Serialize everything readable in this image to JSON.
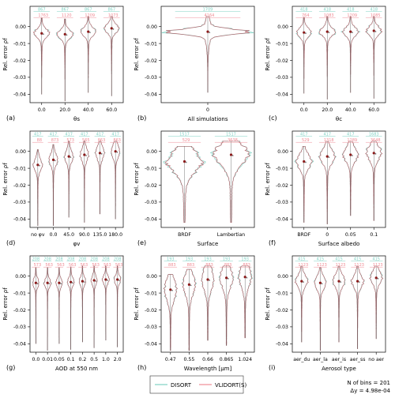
{
  "figure": {
    "legend": [
      {
        "label": "DISORT",
        "color": "#7fd1c3"
      },
      {
        "label": "VLIDORT(S)",
        "color": "#f08c95"
      }
    ],
    "footer_bins": "N of bins = 201",
    "footer_delta": "Δy = 4.98e-04"
  },
  "colors": {
    "disort": "#7fd1c3",
    "vlidort": "#f08c95",
    "median": "#8b1a1a",
    "outline": "#111111"
  },
  "chart_data": [
    {
      "type": "violin",
      "panel": "(a)",
      "xlabel": "θs",
      "ylabel": "Rel. error ρf",
      "ylim": [
        -0.045,
        0.012
      ],
      "yticks": [
        "0.00",
        "-0.01",
        "-0.02",
        "-0.03",
        "-0.04"
      ],
      "categories": [
        "0.0",
        "20.0",
        "40.0",
        "60.0"
      ],
      "counts_disort": [
        "867",
        "867",
        "867",
        "867"
      ],
      "counts_vlidort": [
        "1763",
        "1120",
        "1209",
        "1073"
      ],
      "medians": [
        -0.004,
        -0.0045,
        -0.003,
        -0.001
      ],
      "width": 0.65,
      "halfwidth": 0.0025
    },
    {
      "type": "violin",
      "panel": "(b)",
      "xlabel": "All simulations",
      "ylabel": "Rel. error ρf",
      "ylim": [
        -0.045,
        0.012
      ],
      "yticks": [
        "0.00",
        "-0.01",
        "-0.02",
        "-0.03",
        "-0.04"
      ],
      "categories": [
        "0"
      ],
      "counts_disort": [
        "1709"
      ],
      "counts_vlidort": [
        "4164"
      ],
      "medians": [
        -0.003
      ],
      "width": 0.9,
      "halfwidth": 0.0015
    },
    {
      "type": "violin",
      "panel": "(c)",
      "xlabel": "θc",
      "ylabel": "Rel. error ρf",
      "ylim": [
        -0.045,
        0.012
      ],
      "yticks": [
        "0.00",
        "-0.01",
        "-0.02",
        "-0.03",
        "-0.04"
      ],
      "categories": [
        "0.0",
        "20.0",
        "40.0",
        "60.0"
      ],
      "counts_disort": [
        "418",
        "418",
        "418",
        "418"
      ],
      "counts_vlidort": [
        "764",
        "1083",
        "1209",
        "1085"
      ],
      "medians": [
        -0.0035,
        -0.003,
        -0.003,
        -0.0025
      ],
      "width": 0.65,
      "halfwidth": 0.0025
    },
    {
      "type": "violin",
      "panel": "(d)",
      "xlabel": "φv",
      "ylabel": "Rel. error ρf",
      "ylim": [
        -0.045,
        0.012
      ],
      "yticks": [
        "0.00",
        "-0.01",
        "-0.02",
        "-0.03",
        "-0.04"
      ],
      "categories": [
        "no φv",
        "0.0",
        "45.0",
        "90.0",
        "135.0",
        "180.0"
      ],
      "counts_disort": [
        "417",
        "417",
        "417",
        "417",
        "417",
        "417"
      ],
      "counts_vlidort": [
        "88",
        "873",
        "573",
        "565",
        "863",
        "863"
      ],
      "medians": [
        -0.008,
        -0.005,
        -0.003,
        -0.002,
        -0.001,
        0.0
      ],
      "width": 0.55,
      "halfwidth": 0.0035
    },
    {
      "type": "violin",
      "panel": "(e)",
      "xlabel": "Surface",
      "ylabel": "Rel. error ρf",
      "ylim": [
        -0.045,
        0.012
      ],
      "yticks": [
        "0.00",
        "-0.01",
        "-0.02",
        "-0.03",
        "-0.04"
      ],
      "categories": [
        "BRDF",
        "Lambertian"
      ],
      "counts_disort": [
        "1517",
        "1517"
      ],
      "counts_vlidort": [
        "529",
        "3638"
      ],
      "medians": [
        -0.006,
        -0.002
      ],
      "width": 0.75,
      "halfwidth": 0.006
    },
    {
      "type": "violin",
      "panel": "(f)",
      "xlabel": "Surface albedo",
      "ylabel": "Rel. error ρf",
      "ylim": [
        -0.045,
        0.012
      ],
      "yticks": [
        "0.00",
        "-0.01",
        "-0.02",
        "-0.03",
        "-0.04"
      ],
      "categories": [
        "BRDF",
        "0",
        "0.05",
        "0.1"
      ],
      "counts_disort": [
        "417",
        "417",
        "417",
        "1683"
      ],
      "counts_vlidort": [
        "529",
        "1318",
        "1289",
        "3648"
      ],
      "medians": [
        -0.006,
        -0.003,
        -0.002,
        -0.001
      ],
      "width": 0.65,
      "halfwidth": 0.004
    },
    {
      "type": "violin",
      "panel": "(g)",
      "xlabel": "AOD at 550 nm",
      "ylabel": "Rel. error ρf",
      "ylim": [
        -0.045,
        0.012
      ],
      "yticks": [
        "0.00",
        "-0.01",
        "-0.02",
        "-0.03",
        "-0.04"
      ],
      "categories": [
        "0.0",
        "0.01",
        "0.05",
        "0.1",
        "0.2",
        "0.5",
        "1.0",
        "2.0"
      ],
      "counts_disort": [
        "208",
        "208",
        "208",
        "208",
        "208",
        "208",
        "208",
        "208"
      ],
      "counts_vlidort": [
        "573",
        "563",
        "563",
        "563",
        "563",
        "563",
        "563",
        "563"
      ],
      "medians": [
        -0.004,
        -0.004,
        -0.004,
        -0.0035,
        -0.003,
        -0.0025,
        -0.002,
        -0.002
      ],
      "width": 0.55,
      "halfwidth": 0.0025
    },
    {
      "type": "violin",
      "panel": "(h)",
      "xlabel": "Wavelength [μm]",
      "ylabel": "Rel. error ρf",
      "ylim": [
        -0.045,
        0.012
      ],
      "yticks": [
        "0.00",
        "-0.01",
        "-0.02",
        "-0.03",
        "-0.04"
      ],
      "categories": [
        "0.47",
        "0.55",
        "0.66",
        "0.865",
        "1.024"
      ],
      "counts_disort": [
        "193",
        "193",
        "193",
        "193",
        "193"
      ],
      "counts_vlidort": [
        "883",
        "883",
        "883",
        "883",
        "883"
      ],
      "medians": [
        -0.008,
        -0.005,
        -0.002,
        -0.001,
        -0.0005
      ],
      "width": 0.65,
      "halfwidth": 0.006
    },
    {
      "type": "violin",
      "panel": "(i)",
      "xlabel": "Aerosol type",
      "ylabel": "Rel. error ρf",
      "ylim": [
        -0.045,
        0.012
      ],
      "yticks": [
        "0.00",
        "-0.01",
        "-0.02",
        "-0.03",
        "-0.04"
      ],
      "categories": [
        "aer_du",
        "aer_la",
        "aer_is",
        "aer_ss",
        "no aer"
      ],
      "counts_disort": [
        "415",
        "415",
        "415",
        "415",
        "415"
      ],
      "counts_vlidort": [
        "1123",
        "1123",
        "1123",
        "1123",
        "1123"
      ],
      "medians": [
        -0.003,
        -0.004,
        -0.003,
        -0.003,
        -0.001
      ],
      "width": 0.65,
      "halfwidth": 0.0035
    }
  ]
}
